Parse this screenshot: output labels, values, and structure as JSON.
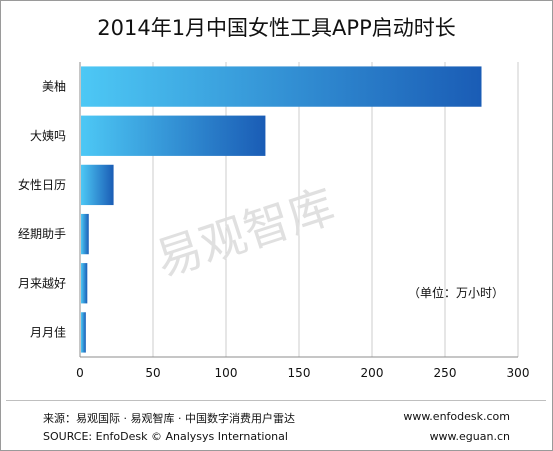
{
  "chart_data": {
    "type": "bar",
    "orientation": "horizontal",
    "title": "2014年1月中国女性工具APP启动时长",
    "unit_note": "（单位：万小时）",
    "categories": [
      "美柚",
      "大姨吗",
      "女性日历",
      "经期助手",
      "月来越好",
      "月月佳"
    ],
    "values": [
      275,
      127,
      23,
      6,
      5,
      4
    ],
    "xlim": [
      0,
      300
    ],
    "xticks": [
      "0",
      "50",
      "100",
      "150",
      "200",
      "250",
      "300"
    ],
    "grid": true,
    "legend": "none",
    "colors": {
      "bar_light": "#4dc8f5",
      "bar_dark": "#1a5cb5",
      "grid": "#cccccc"
    }
  },
  "watermark": "易观智库",
  "footer": {
    "source_cn": "来源：易观国际 · 易观智库 · 中国数字消费用户雷达",
    "source_en": "SOURCE: EnfoDesk © Analysys International",
    "site_1": "www.enfodesk.com",
    "site_2": "www.eguan.cn"
  }
}
